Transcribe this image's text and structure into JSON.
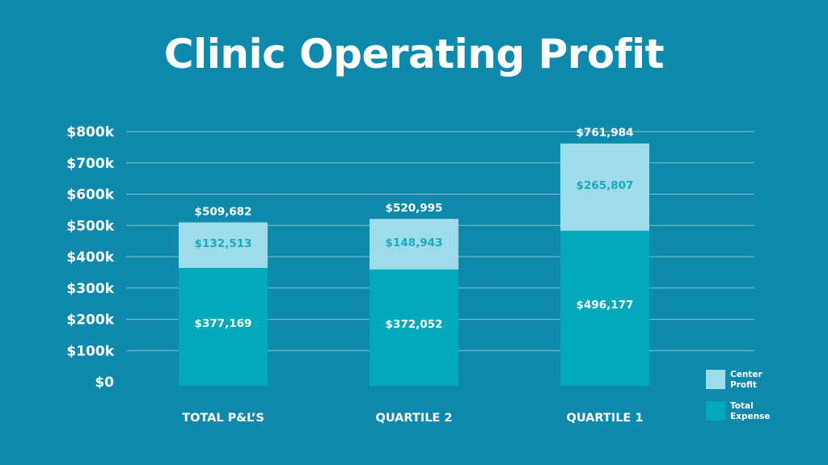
{
  "chart_data": {
    "type": "bar",
    "stacked": true,
    "title": "Clinic Operating Profit",
    "categories": [
      "TOTAL P&L’S",
      "QUARTILE 2",
      "QUARTILE 1"
    ],
    "series": [
      {
        "name": "Total Expense",
        "values": [
          377169,
          372052,
          496177
        ],
        "labels": [
          "$377,169",
          "$372,052",
          "$496,177"
        ],
        "color": "#00aabb",
        "label_color": "#ffffff"
      },
      {
        "name": "Center Profit",
        "values": [
          132513,
          148943,
          265807
        ],
        "labels": [
          "$132,513",
          "$148,943",
          "$265,807"
        ],
        "color": "#9dddea",
        "label_color": "#17a9bd"
      }
    ],
    "totals": [
      "$509,682",
      "$520,995",
      "$761,984"
    ],
    "ylim": [
      0,
      800000
    ],
    "yticks": [
      0,
      100000,
      200000,
      300000,
      400000,
      500000,
      600000,
      700000,
      800000
    ],
    "ytick_labels": [
      "$0",
      "$100k",
      "$200k",
      "$300k",
      "$400k",
      "$500k",
      "$600k",
      "$700k",
      "$800k"
    ],
    "grid": true,
    "legend_position": "bottom-right",
    "legend": [
      {
        "lines": [
          "Center",
          "Profit"
        ],
        "color": "#9dddea"
      },
      {
        "lines": [
          "Total",
          "Expense"
        ],
        "color": "#00aabb"
      }
    ]
  }
}
